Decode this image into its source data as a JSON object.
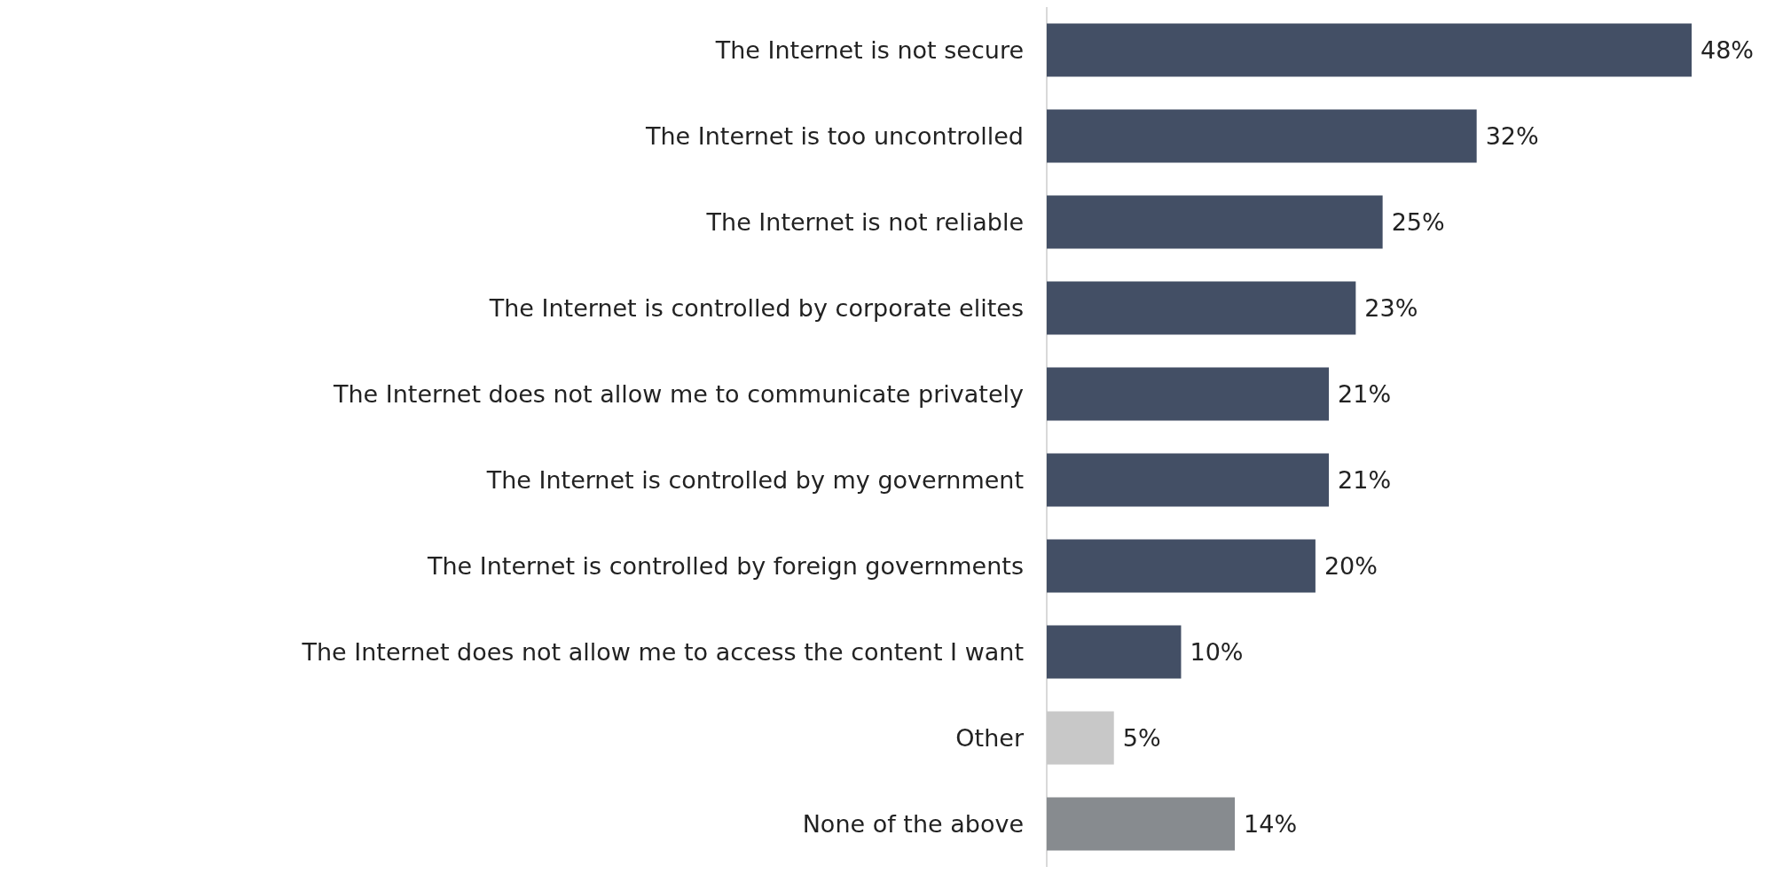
{
  "chart_data": {
    "type": "bar",
    "orientation": "horizontal",
    "categories": [
      "The Internet is not secure",
      "The Internet is too uncontrolled",
      "The Internet is not reliable",
      "The Internet is controlled by corporate elites",
      "The Internet does not allow me to communicate privately",
      "The Internet is controlled by my government",
      "The Internet is controlled by foreign governments",
      "The Internet does not allow me to access the content I want",
      "Other",
      "None of the above"
    ],
    "values": [
      48,
      32,
      25,
      23,
      21,
      21,
      20,
      10,
      5,
      14
    ],
    "colors": [
      "#434f65",
      "#434f65",
      "#434f65",
      "#434f65",
      "#434f65",
      "#434f65",
      "#434f65",
      "#434f65",
      "#c8c8c8",
      "#878b8f"
    ],
    "value_labels": [
      "48%",
      "32%",
      "25%",
      "23%",
      "21%",
      "21%",
      "20%",
      "10%",
      "5%",
      "14%"
    ]
  }
}
